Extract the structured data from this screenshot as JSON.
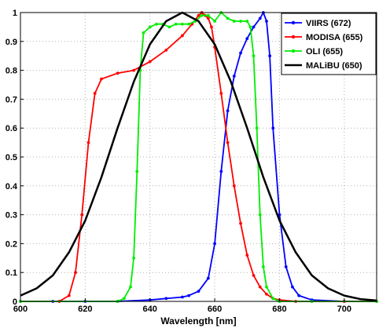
{
  "chart_data": {
    "type": "line",
    "title": "",
    "xlabel": "Wavelength [nm]",
    "ylabel": "",
    "xlim": [
      600,
      710
    ],
    "ylim": [
      0,
      1
    ],
    "grid": true,
    "legend_position": "top-right",
    "x_ticks": [
      "600",
      "620",
      "640",
      "660",
      "680",
      "700"
    ],
    "y_ticks": [
      "0",
      "0.1",
      "0.2",
      "0.3",
      "0.4",
      "0.5",
      "0.6",
      "0.7",
      "0.8",
      "0.9",
      "1"
    ],
    "series": [
      {
        "name": "VIIRS (672)",
        "color": "#0000ff",
        "marker": "dot",
        "x": [
          600,
          610,
          620,
          630,
          640,
          645,
          650,
          652,
          655,
          658,
          660,
          662,
          664,
          666,
          668,
          670,
          672,
          674,
          675,
          676,
          677,
          678,
          680,
          682,
          684,
          686,
          690,
          700,
          710
        ],
        "y": [
          0,
          0,
          0,
          0,
          0.005,
          0.01,
          0.015,
          0.02,
          0.035,
          0.08,
          0.2,
          0.45,
          0.66,
          0.78,
          0.86,
          0.91,
          0.95,
          0.98,
          1.0,
          0.97,
          0.85,
          0.6,
          0.3,
          0.12,
          0.05,
          0.02,
          0.005,
          0,
          0
        ]
      },
      {
        "name": "MODISA (655)",
        "color": "#ff0000",
        "marker": "dot",
        "x": [
          600,
          612,
          615,
          617,
          619,
          621,
          623,
          625,
          630,
          635,
          640,
          645,
          650,
          653,
          655,
          656,
          657,
          658,
          659,
          660,
          662,
          664,
          666,
          668,
          670,
          672,
          674,
          676,
          678,
          680,
          685,
          700,
          710
        ],
        "y": [
          0,
          0,
          0.02,
          0.1,
          0.3,
          0.55,
          0.72,
          0.77,
          0.79,
          0.8,
          0.83,
          0.87,
          0.92,
          0.96,
          0.99,
          1.0,
          0.99,
          0.98,
          0.95,
          0.88,
          0.72,
          0.55,
          0.4,
          0.27,
          0.16,
          0.09,
          0.05,
          0.025,
          0.01,
          0.005,
          0,
          0,
          0
        ]
      },
      {
        "name": "OLI (655)",
        "color": "#00ee00",
        "marker": "dot",
        "x": [
          600,
          630,
          632,
          634,
          635,
          636,
          637,
          638,
          640,
          642,
          644,
          646,
          648,
          650,
          652,
          654,
          656,
          658,
          660,
          662,
          664,
          666,
          668,
          670,
          671,
          672,
          673,
          674,
          675,
          676,
          678,
          680,
          690,
          710
        ],
        "y": [
          0,
          0,
          0.01,
          0.05,
          0.15,
          0.45,
          0.8,
          0.93,
          0.95,
          0.96,
          0.96,
          0.95,
          0.96,
          0.96,
          0.96,
          0.97,
          0.99,
          0.99,
          0.97,
          1.0,
          0.98,
          0.97,
          0.97,
          0.97,
          0.95,
          0.85,
          0.6,
          0.3,
          0.12,
          0.05,
          0.01,
          0,
          0,
          0
        ]
      },
      {
        "name": "MALiBU (650)",
        "color": "#000000",
        "marker": "none",
        "x": [
          600,
          605,
          610,
          615,
          620,
          625,
          630,
          635,
          640,
          645,
          650,
          655,
          660,
          665,
          670,
          675,
          680,
          685,
          690,
          695,
          700,
          705,
          710
        ],
        "y": [
          0.02,
          0.045,
          0.09,
          0.17,
          0.28,
          0.43,
          0.6,
          0.76,
          0.89,
          0.97,
          1.0,
          0.97,
          0.89,
          0.76,
          0.6,
          0.43,
          0.28,
          0.17,
          0.09,
          0.045,
          0.02,
          0.008,
          0.003
        ]
      }
    ]
  }
}
